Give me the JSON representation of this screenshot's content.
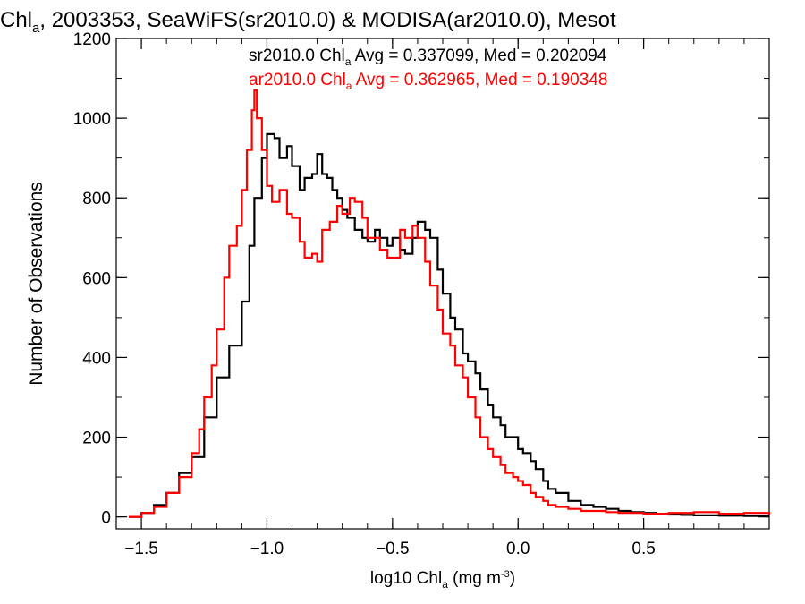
{
  "chart_data": {
    "type": "line",
    "title": {
      "base": "Chl",
      "sub": "a",
      "rest": ", 2003353, SeaWiFS(sr2010.0) & MODISA(ar2010.0), Mesot"
    },
    "xlabel": {
      "base": "log10 Chl",
      "sub": "a",
      "rest": " (mg m",
      "sup": "-3",
      "end": ")"
    },
    "ylabel": "Number of Observations",
    "xlim": [
      -1.6,
      1.0
    ],
    "ylim": [
      -30,
      1200
    ],
    "xticks": [
      {
        "value": -1.5,
        "label": "−1.5"
      },
      {
        "value": -1.0,
        "label": "−1.0"
      },
      {
        "value": -0.5,
        "label": "−0.5"
      },
      {
        "value": 0.0,
        "label": "0.0"
      },
      {
        "value": 0.5,
        "label": "0.5"
      }
    ],
    "yticks": [
      {
        "value": 0,
        "label": "0"
      },
      {
        "value": 200,
        "label": "200"
      },
      {
        "value": 400,
        "label": "400"
      },
      {
        "value": 600,
        "label": "600"
      },
      {
        "value": 800,
        "label": "800"
      },
      {
        "value": 1000,
        "label": "1000"
      },
      {
        "value": 1200,
        "label": "1200"
      }
    ],
    "grid": false,
    "legend_placement": "top-right",
    "series": [
      {
        "name": "sr2010.0",
        "color": "#000000",
        "stat_label": {
          "base": "sr2010.0 Chl",
          "sub": "a",
          "rest": " Avg = 0.337099, Med = 0.202094"
        },
        "x": [
          -1.55,
          -1.5,
          -1.45,
          -1.4,
          -1.35,
          -1.3,
          -1.25,
          -1.2,
          -1.15,
          -1.1,
          -1.07,
          -1.05,
          -1.02,
          -1.0,
          -0.97,
          -0.95,
          -0.92,
          -0.9,
          -0.87,
          -0.85,
          -0.82,
          -0.8,
          -0.78,
          -0.76,
          -0.74,
          -0.72,
          -0.7,
          -0.68,
          -0.65,
          -0.62,
          -0.6,
          -0.57,
          -0.55,
          -0.52,
          -0.5,
          -0.47,
          -0.45,
          -0.42,
          -0.4,
          -0.37,
          -0.35,
          -0.32,
          -0.3,
          -0.27,
          -0.25,
          -0.22,
          -0.2,
          -0.17,
          -0.15,
          -0.12,
          -0.1,
          -0.07,
          -0.05,
          -0.02,
          0.0,
          0.02,
          0.05,
          0.07,
          0.1,
          0.12,
          0.15,
          0.2,
          0.25,
          0.3,
          0.35,
          0.4,
          0.45,
          0.5,
          0.55,
          0.6,
          0.65,
          0.7,
          0.8,
          0.9,
          1.0
        ],
        "y": [
          0,
          10,
          30,
          60,
          110,
          150,
          250,
          350,
          430,
          540,
          680,
          800,
          900,
          960,
          950,
          900,
          930,
          880,
          820,
          850,
          860,
          910,
          860,
          850,
          820,
          800,
          770,
          750,
          720,
          700,
          690,
          720,
          700,
          680,
          700,
          670,
          660,
          700,
          740,
          720,
          700,
          620,
          560,
          500,
          470,
          410,
          390,
          360,
          320,
          280,
          250,
          230,
          200,
          200,
          170,
          160,
          140,
          120,
          90,
          70,
          60,
          40,
          30,
          25,
          20,
          15,
          12,
          10,
          8,
          6,
          5,
          4,
          3,
          2,
          2
        ]
      },
      {
        "name": "ar2010.0",
        "color": "#ff0000",
        "stat_label": {
          "base": "ar2010.0 Chl",
          "sub": "a",
          "rest": " Avg = 0.362965, Med = 0.190348"
        },
        "x": [
          -1.55,
          -1.5,
          -1.45,
          -1.4,
          -1.35,
          -1.3,
          -1.27,
          -1.25,
          -1.22,
          -1.2,
          -1.17,
          -1.15,
          -1.12,
          -1.1,
          -1.08,
          -1.06,
          -1.05,
          -1.04,
          -1.02,
          -1.0,
          -0.98,
          -0.95,
          -0.92,
          -0.9,
          -0.87,
          -0.85,
          -0.82,
          -0.8,
          -0.78,
          -0.75,
          -0.72,
          -0.7,
          -0.67,
          -0.65,
          -0.62,
          -0.6,
          -0.57,
          -0.55,
          -0.52,
          -0.5,
          -0.47,
          -0.45,
          -0.42,
          -0.4,
          -0.37,
          -0.35,
          -0.32,
          -0.3,
          -0.27,
          -0.25,
          -0.22,
          -0.2,
          -0.17,
          -0.15,
          -0.12,
          -0.1,
          -0.07,
          -0.05,
          -0.02,
          0.0,
          0.02,
          0.05,
          0.07,
          0.1,
          0.12,
          0.15,
          0.2,
          0.25,
          0.3,
          0.35,
          0.4,
          0.5,
          0.6,
          0.7,
          0.8,
          0.9,
          1.0
        ],
        "y": [
          0,
          10,
          25,
          60,
          100,
          160,
          220,
          300,
          380,
          470,
          600,
          680,
          730,
          820,
          920,
          1020,
          1070,
          1000,
          920,
          830,
          790,
          820,
          760,
          750,
          690,
          650,
          660,
          640,
          720,
          740,
          780,
          760,
          800,
          790,
          750,
          700,
          700,
          670,
          650,
          650,
          720,
          700,
          730,
          700,
          640,
          580,
          520,
          460,
          430,
          380,
          350,
          300,
          250,
          200,
          170,
          150,
          130,
          110,
          100,
          90,
          80,
          60,
          50,
          40,
          30,
          25,
          20,
          15,
          15,
          12,
          10,
          8,
          10,
          12,
          8,
          10,
          5
        ]
      }
    ]
  }
}
